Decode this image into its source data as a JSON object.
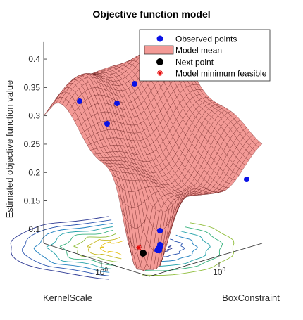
{
  "chart_data": {
    "type": "surface3d",
    "title": "Objective function model",
    "xlabel": "KernelScale",
    "ylabel": "BoxConstraint",
    "zlabel": "Estimated objective function value",
    "x_scale": "log",
    "y_scale": "log",
    "x_ticks": [
      "10^0"
    ],
    "y_ticks": [
      "10^0"
    ],
    "z_ticks": [
      0.1,
      0.15,
      0.2,
      0.25,
      0.3,
      0.35,
      0.4
    ],
    "zlim": [
      0.075,
      0.43
    ],
    "legend": {
      "placement": "top-right",
      "entries": [
        {
          "label": "Observed points",
          "marker": "blue-dot"
        },
        {
          "label": "Model mean",
          "marker": "red-patch"
        },
        {
          "label": "Next point",
          "marker": "black-dot"
        },
        {
          "label": "Model minimum feasible",
          "marker": "red-asterisk"
        }
      ]
    },
    "colors": {
      "surface_fill": "#f39a96",
      "surface_edge": "#5a0f0f",
      "observed": "#0a12e6",
      "next": "#000000",
      "minimum": "#e60000"
    },
    "observed_points": [
      {
        "kernel_scale": 0.002,
        "box_constraint": 0.004,
        "objective": 0.355
      },
      {
        "kernel_scale": 0.02,
        "box_constraint": 0.03,
        "objective": 0.39
      },
      {
        "kernel_scale": 0.01,
        "box_constraint": 0.005,
        "objective": 0.35
      },
      {
        "kernel_scale": 0.04,
        "box_constraint": 0.002,
        "objective": 0.31
      },
      {
        "kernel_scale": 300,
        "box_constraint": 900,
        "objective": 0.205
      },
      {
        "kernel_scale": 1.2,
        "box_constraint": 0.8,
        "objective": 0.143
      },
      {
        "kernel_scale": 1.5,
        "box_constraint": 0.9,
        "objective": 0.125
      },
      {
        "kernel_scale": 1.8,
        "box_constraint": 1.1,
        "objective": 0.101
      },
      {
        "kernel_scale": 2.0,
        "box_constraint": 1.0,
        "objective": 0.098
      },
      {
        "kernel_scale": 3.0,
        "box_constraint": 2.0,
        "objective": 0.097
      },
      {
        "kernel_scale": 1.0,
        "box_constraint": 1.2,
        "objective": 0.094
      },
      {
        "kernel_scale": 1.1,
        "box_constraint": 1.5,
        "objective": 0.089
      },
      {
        "kernel_scale": 1.3,
        "box_constraint": 1.3,
        "objective": 0.088
      },
      {
        "kernel_scale": 1.4,
        "box_constraint": 1.6,
        "objective": 0.086
      },
      {
        "kernel_scale": 1.6,
        "box_constraint": 1.4,
        "objective": 0.087
      },
      {
        "kernel_scale": 0.9,
        "box_constraint": 1.1,
        "objective": 0.09
      },
      {
        "kernel_scale": 1.2,
        "box_constraint": 2.0,
        "objective": 0.085
      },
      {
        "kernel_scale": 1.7,
        "box_constraint": 2.2,
        "objective": 0.084
      },
      {
        "kernel_scale": 2.2,
        "box_constraint": 1.8,
        "objective": 0.086
      },
      {
        "kernel_scale": 0.8,
        "box_constraint": 1.6,
        "objective": 0.088
      },
      {
        "kernel_scale": 1.9,
        "box_constraint": 2.5,
        "objective": 0.087
      },
      {
        "kernel_scale": 2.5,
        "box_constraint": 3.0,
        "objective": 0.09
      }
    ],
    "next_point": {
      "kernel_scale": 1.8,
      "box_constraint": 2.4,
      "objective": 0.083
    },
    "model_minimum_feasible": {
      "kernel_scale": 1.6,
      "box_constraint": 2.0,
      "objective": 0.084
    }
  }
}
